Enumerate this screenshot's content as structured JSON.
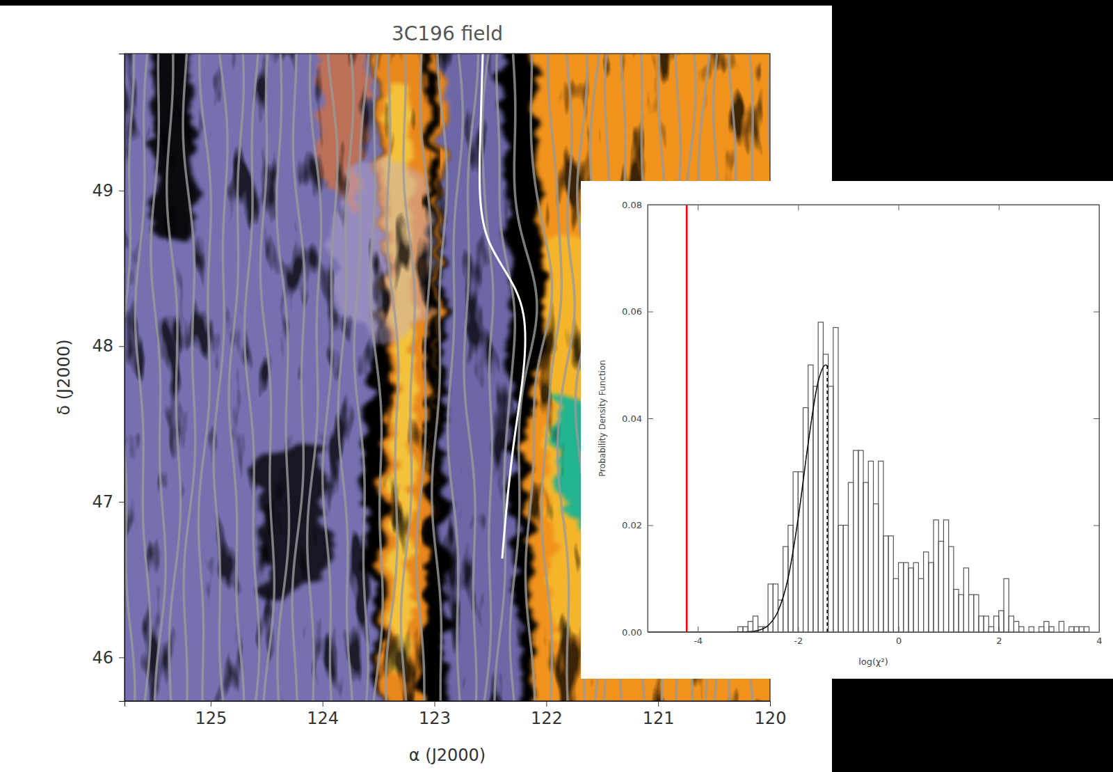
{
  "chart_data": [
    {
      "type": "image",
      "title": "3C196 field",
      "x_label": "α (J2000)",
      "y_label": "δ (J2000)",
      "xlim": [
        125.77,
        120
      ],
      "ylim": [
        45.72,
        49.88
      ],
      "xticks": [
        125,
        124,
        123,
        122,
        121,
        120
      ],
      "yticks": [
        46,
        47,
        48,
        49
      ]
    },
    {
      "type": "histogram",
      "x_label": "log(χ²)",
      "y_label": "Probability Density Function",
      "color": "#555555",
      "xlim": [
        -5,
        4
      ],
      "ylim": [
        0,
        0.08
      ],
      "xticks": [
        -4,
        -2,
        0,
        2,
        4
      ],
      "yticks": [
        {
          "value": 0,
          "label": "0.00"
        },
        {
          "value": 0.02,
          "label": "0.02"
        },
        {
          "value": 0.04,
          "label": "0.04"
        },
        {
          "value": 0.06,
          "label": "0.06"
        },
        {
          "value": 0.08,
          "label": "0.08"
        }
      ],
      "bins": [
        -3.2,
        -3.1,
        -3.0,
        -2.9,
        -2.8,
        -2.7,
        -2.6,
        -2.5,
        -2.4,
        -2.3,
        -2.2,
        -2.1,
        -2.0,
        -1.9,
        -1.8,
        -1.7,
        -1.6,
        -1.5,
        -1.4,
        -1.3,
        -1.2,
        -1.1,
        -1.0,
        -0.9,
        -0.8,
        -0.7,
        -0.6,
        -0.5,
        -0.4,
        -0.3,
        -0.2,
        -0.1,
        0.0,
        0.1,
        0.2,
        0.3,
        0.4,
        0.5,
        0.6,
        0.7,
        0.8,
        0.9,
        1.0,
        1.1,
        1.2,
        1.3,
        1.4,
        1.5,
        1.6,
        1.7,
        1.8,
        1.9,
        2.0,
        2.1,
        2.2,
        2.3,
        2.4,
        2.5,
        2.6,
        2.7,
        2.8,
        2.9,
        3.0,
        3.1,
        3.2,
        3.3,
        3.4,
        3.5,
        3.6,
        3.7,
        3.8,
        3.9
      ],
      "values": [
        0.001,
        0.001,
        0.002,
        0.003,
        0.001,
        0.001,
        0.009,
        0.009,
        0.006,
        0.016,
        0.02,
        0.03,
        0.03,
        0.042,
        0.05,
        0.046,
        0.058,
        0.052,
        0.046,
        0.057,
        0.02,
        0.02,
        0.028,
        0.034,
        0.034,
        0.028,
        0.032,
        0.024,
        0.032,
        0.018,
        0.018,
        0.01,
        0.013,
        0.013,
        0.012,
        0.013,
        0.01,
        0.015,
        0.013,
        0.021,
        0.017,
        0.021,
        0.016,
        0.008,
        0.007,
        0.012,
        0.007,
        0.007,
        0.003,
        0.003,
        0.001,
        0.003,
        0.004,
        0.01,
        0.003,
        0.002,
        0.001,
        0,
        0.001,
        0,
        0.001,
        0.002,
        0.001,
        0,
        0.002,
        0,
        0.001,
        0.001,
        0.001,
        0.001,
        0
      ],
      "series": [
        {
          "type": "line",
          "color": "#000000",
          "line_style": "solid",
          "x": [
            -5,
            -4,
            -3.5,
            -3.2,
            -3.0,
            -2.8,
            -2.6,
            -2.4,
            -2.2,
            -2.0,
            -1.8,
            -1.6,
            -1.45,
            -1.4
          ],
          "values": [
            0,
            0,
            0,
            2e-05,
            6e-05,
            0.0003,
            0.0012,
            0.0039,
            0.0101,
            0.0212,
            0.0353,
            0.0469,
            0.05,
            0.0496
          ]
        }
      ],
      "reference_lines": [
        {
          "x": -4.22,
          "y": [
            0,
            0.08
          ],
          "color": "#ff0000",
          "line_style": "solid"
        },
        {
          "x": -1.42,
          "y": [
            0,
            0.05
          ],
          "color": "#000000",
          "line_style": "dashed"
        }
      ]
    }
  ]
}
